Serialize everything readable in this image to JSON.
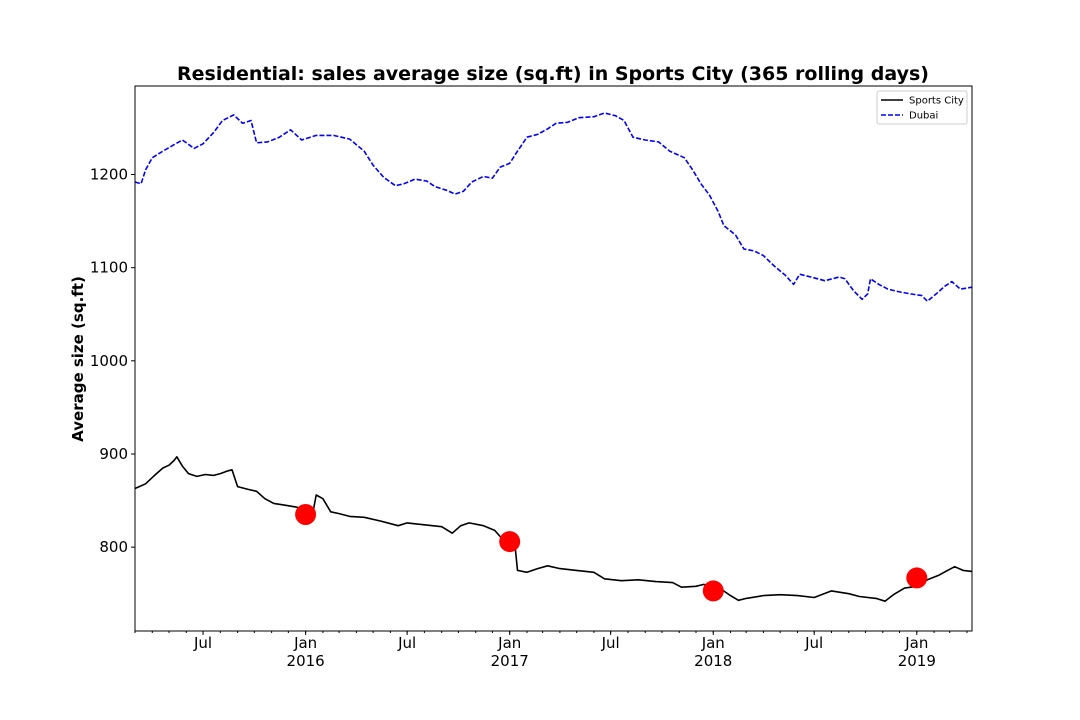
{
  "chart_data": {
    "type": "line",
    "title": "Residential: sales average size (sq.ft) in Sports City (365 rolling days)",
    "ylabel": "Average size (sq.ft)",
    "xlim": [
      "2015-03-01",
      "2019-04-10"
    ],
    "ylim": [
      710,
      1295
    ],
    "y_ticks": [
      800,
      900,
      1000,
      1100,
      1200
    ],
    "x_major_ticks": [
      {
        "date": "2015-07-01",
        "label": "Jul",
        "sublabel": ""
      },
      {
        "date": "2016-01-01",
        "label": "Jan",
        "sublabel": "2016"
      },
      {
        "date": "2016-07-01",
        "label": "Jul",
        "sublabel": ""
      },
      {
        "date": "2017-01-01",
        "label": "Jan",
        "sublabel": "2017"
      },
      {
        "date": "2017-07-01",
        "label": "Jul",
        "sublabel": ""
      },
      {
        "date": "2018-01-01",
        "label": "Jan",
        "sublabel": "2018"
      },
      {
        "date": "2018-07-01",
        "label": "Jul",
        "sublabel": ""
      },
      {
        "date": "2019-01-01",
        "label": "Jan",
        "sublabel": "2019"
      }
    ],
    "grid": false,
    "legend_position": "top-right",
    "series": [
      {
        "name": "Sports City",
        "color": "#000000",
        "style": "solid",
        "points": [
          [
            "2015-03-01",
            863
          ],
          [
            "2015-03-20",
            868
          ],
          [
            "2015-04-05",
            877
          ],
          [
            "2015-04-20",
            885
          ],
          [
            "2015-05-01",
            888
          ],
          [
            "2015-05-10",
            893
          ],
          [
            "2015-05-15",
            897
          ],
          [
            "2015-05-25",
            887
          ],
          [
            "2015-06-05",
            879
          ],
          [
            "2015-06-20",
            876
          ],
          [
            "2015-07-05",
            878
          ],
          [
            "2015-07-20",
            877
          ],
          [
            "2015-08-01",
            879
          ],
          [
            "2015-08-15",
            882
          ],
          [
            "2015-08-22",
            883
          ],
          [
            "2015-09-01",
            865
          ],
          [
            "2015-09-20",
            862
          ],
          [
            "2015-10-05",
            860
          ],
          [
            "2015-10-20",
            852
          ],
          [
            "2015-11-05",
            847
          ],
          [
            "2015-11-25",
            845
          ],
          [
            "2015-12-15",
            843
          ],
          [
            "2016-01-01",
            841
          ],
          [
            "2016-01-15",
            840
          ],
          [
            "2016-01-20",
            856
          ],
          [
            "2016-02-01",
            852
          ],
          [
            "2016-02-15",
            838
          ],
          [
            "2016-03-01",
            836
          ],
          [
            "2016-03-20",
            833
          ],
          [
            "2016-04-15",
            832
          ],
          [
            "2016-05-15",
            828
          ],
          [
            "2016-06-15",
            823
          ],
          [
            "2016-07-01",
            826
          ],
          [
            "2016-08-01",
            824
          ],
          [
            "2016-09-01",
            822
          ],
          [
            "2016-09-20",
            815
          ],
          [
            "2016-10-05",
            823
          ],
          [
            "2016-10-20",
            826
          ],
          [
            "2016-11-15",
            823
          ],
          [
            "2016-12-05",
            818
          ],
          [
            "2016-12-20",
            808
          ],
          [
            "2017-01-10",
            805
          ],
          [
            "2017-01-15",
            775
          ],
          [
            "2017-02-01",
            773
          ],
          [
            "2017-02-20",
            777
          ],
          [
            "2017-03-10",
            780
          ],
          [
            "2017-04-01",
            777
          ],
          [
            "2017-05-01",
            775
          ],
          [
            "2017-06-01",
            773
          ],
          [
            "2017-06-20",
            766
          ],
          [
            "2017-07-20",
            764
          ],
          [
            "2017-08-20",
            765
          ],
          [
            "2017-09-20",
            763
          ],
          [
            "2017-10-20",
            762
          ],
          [
            "2017-11-05",
            757
          ],
          [
            "2017-12-01",
            758
          ],
          [
            "2017-12-15",
            760
          ],
          [
            "2018-01-01",
            756
          ],
          [
            "2018-01-15",
            755
          ],
          [
            "2018-02-01",
            748
          ],
          [
            "2018-02-15",
            743
          ],
          [
            "2018-03-01",
            745
          ],
          [
            "2018-04-01",
            748
          ],
          [
            "2018-05-01",
            749
          ],
          [
            "2018-06-01",
            748
          ],
          [
            "2018-07-01",
            746
          ],
          [
            "2018-08-01",
            753
          ],
          [
            "2018-09-01",
            750
          ],
          [
            "2018-09-20",
            747
          ],
          [
            "2018-10-20",
            745
          ],
          [
            "2018-11-05",
            742
          ],
          [
            "2018-11-20",
            749
          ],
          [
            "2018-12-10",
            756
          ],
          [
            "2019-01-01",
            758
          ],
          [
            "2019-01-20",
            765
          ],
          [
            "2019-02-10",
            770
          ],
          [
            "2019-02-25",
            775
          ],
          [
            "2019-03-10",
            779
          ],
          [
            "2019-03-25",
            775
          ],
          [
            "2019-04-10",
            774
          ]
        ]
      },
      {
        "name": "Dubai",
        "color": "#0000ff",
        "style": "dashed",
        "points": [
          [
            "2015-03-01",
            1192
          ],
          [
            "2015-03-12",
            1190
          ],
          [
            "2015-03-20",
            1205
          ],
          [
            "2015-04-01",
            1218
          ],
          [
            "2015-04-20",
            1225
          ],
          [
            "2015-05-10",
            1232
          ],
          [
            "2015-05-25",
            1237
          ],
          [
            "2015-06-15",
            1228
          ],
          [
            "2015-07-01",
            1233
          ],
          [
            "2015-07-20",
            1245
          ],
          [
            "2015-08-05",
            1258
          ],
          [
            "2015-08-25",
            1264
          ],
          [
            "2015-09-10",
            1255
          ],
          [
            "2015-09-25",
            1258
          ],
          [
            "2015-10-05",
            1234
          ],
          [
            "2015-10-25",
            1235
          ],
          [
            "2015-11-15",
            1240
          ],
          [
            "2015-12-05",
            1248
          ],
          [
            "2015-12-25",
            1237
          ],
          [
            "2016-01-20",
            1242
          ],
          [
            "2016-02-20",
            1242
          ],
          [
            "2016-03-20",
            1238
          ],
          [
            "2016-04-15",
            1225
          ],
          [
            "2016-05-01",
            1210
          ],
          [
            "2016-05-20",
            1197
          ],
          [
            "2016-06-10",
            1188
          ],
          [
            "2016-06-25",
            1190
          ],
          [
            "2016-07-15",
            1195
          ],
          [
            "2016-08-05",
            1193
          ],
          [
            "2016-08-20",
            1187
          ],
          [
            "2016-09-10",
            1183
          ],
          [
            "2016-09-25",
            1179
          ],
          [
            "2016-10-10",
            1182
          ],
          [
            "2016-10-25",
            1192
          ],
          [
            "2016-11-15",
            1198
          ],
          [
            "2016-12-01",
            1196
          ],
          [
            "2016-12-15",
            1208
          ],
          [
            "2017-01-01",
            1212
          ],
          [
            "2017-01-15",
            1225
          ],
          [
            "2017-02-01",
            1240
          ],
          [
            "2017-02-20",
            1243
          ],
          [
            "2017-03-10",
            1249
          ],
          [
            "2017-03-25",
            1255
          ],
          [
            "2017-04-15",
            1256
          ],
          [
            "2017-05-05",
            1261
          ],
          [
            "2017-06-01",
            1262
          ],
          [
            "2017-06-20",
            1266
          ],
          [
            "2017-07-10",
            1263
          ],
          [
            "2017-07-25",
            1258
          ],
          [
            "2017-08-10",
            1240
          ],
          [
            "2017-09-01",
            1237
          ],
          [
            "2017-09-25",
            1235
          ],
          [
            "2017-10-15",
            1225
          ],
          [
            "2017-11-10",
            1218
          ],
          [
            "2017-11-25",
            1205
          ],
          [
            "2017-12-10",
            1190
          ],
          [
            "2017-12-25",
            1178
          ],
          [
            "2018-01-10",
            1160
          ],
          [
            "2018-01-20",
            1145
          ],
          [
            "2018-02-10",
            1135
          ],
          [
            "2018-02-25",
            1120
          ],
          [
            "2018-03-15",
            1118
          ],
          [
            "2018-04-01",
            1113
          ],
          [
            "2018-04-20",
            1102
          ],
          [
            "2018-05-10",
            1092
          ],
          [
            "2018-05-25",
            1082
          ],
          [
            "2018-06-05",
            1093
          ],
          [
            "2018-06-25",
            1090
          ],
          [
            "2018-07-20",
            1086
          ],
          [
            "2018-08-15",
            1090
          ],
          [
            "2018-08-25",
            1088
          ],
          [
            "2018-09-10",
            1075
          ],
          [
            "2018-09-25",
            1066
          ],
          [
            "2018-10-05",
            1072
          ],
          [
            "2018-10-10",
            1088
          ],
          [
            "2018-10-25",
            1082
          ],
          [
            "2018-11-10",
            1077
          ],
          [
            "2018-12-01",
            1074
          ],
          [
            "2018-12-20",
            1072
          ],
          [
            "2019-01-10",
            1070
          ],
          [
            "2019-01-20",
            1064
          ],
          [
            "2019-02-05",
            1072
          ],
          [
            "2019-02-20",
            1080
          ],
          [
            "2019-03-05",
            1085
          ],
          [
            "2019-03-20",
            1077
          ],
          [
            "2019-04-10",
            1079
          ]
        ]
      }
    ],
    "markers": {
      "color": "#ff0000",
      "points": [
        [
          "2016-01-01",
          835
        ],
        [
          "2017-01-01",
          806
        ],
        [
          "2018-01-01",
          753
        ],
        [
          "2019-01-01",
          767
        ]
      ]
    }
  }
}
